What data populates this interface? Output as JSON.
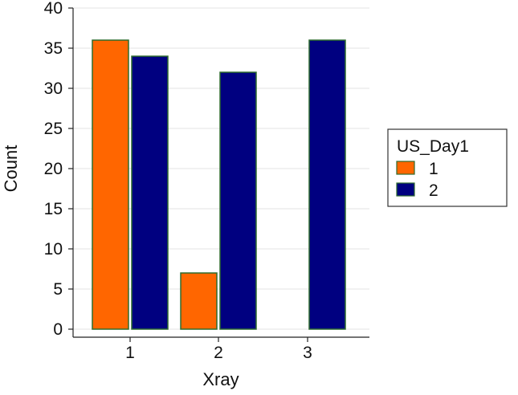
{
  "chart_data": {
    "type": "bar",
    "title": "",
    "xlabel": "Xray",
    "ylabel": "Count",
    "categories": [
      "1",
      "2",
      "3"
    ],
    "ylim": [
      0,
      40
    ],
    "yticks": [
      0,
      5,
      10,
      15,
      20,
      25,
      30,
      35,
      40
    ],
    "grid": true,
    "legend": {
      "title": "US_Day1",
      "placement": "right"
    },
    "series": [
      {
        "name": "1",
        "color": "#FF6600",
        "values": [
          36,
          7,
          null
        ]
      },
      {
        "name": "2",
        "color": "#000080",
        "values": [
          34,
          32,
          36
        ]
      }
    ],
    "bar_edge_color": "#2E6B2E",
    "gridline_color": "#E3E3E3",
    "axis_color": "#222222"
  }
}
